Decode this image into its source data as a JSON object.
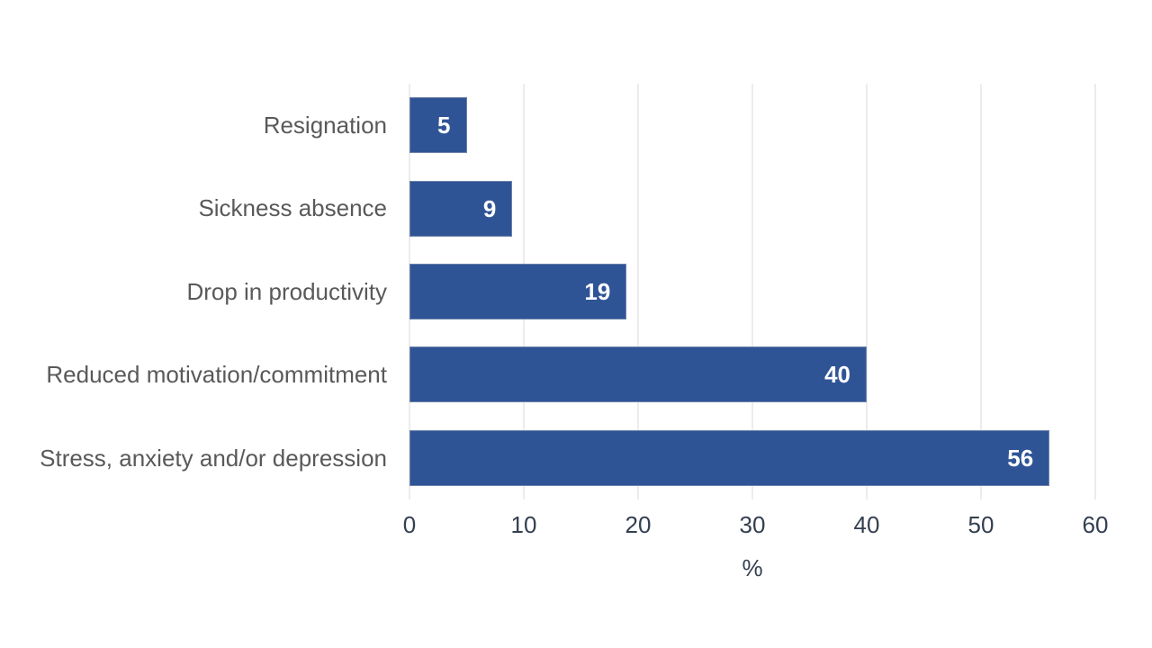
{
  "chart_data": {
    "type": "bar",
    "orientation": "horizontal",
    "title": "",
    "xlabel": "%",
    "ylabel": "",
    "categories": [
      "Resignation",
      "Sickness absence",
      "Drop in productivity",
      "Reduced motivation/commitment",
      "Stress, anxiety and/or depression"
    ],
    "values": [
      5,
      9,
      19,
      40,
      56
    ],
    "value_labels": [
      "5",
      "9",
      "19",
      "40",
      "56"
    ],
    "xlim": [
      0,
      60
    ],
    "xticks": [
      0,
      10,
      20,
      30,
      40,
      50,
      60
    ],
    "tick_labels": [
      "0",
      "10",
      "20",
      "30",
      "40",
      "50",
      "60"
    ],
    "grid": true,
    "gridlines": "vertical",
    "legend_position": "none",
    "colors": {
      "bar_fill": "#2F5496",
      "bar_border": "#9EA8BC",
      "gridline": "#D9D9D9",
      "category_label": "#595959",
      "tick_label": "#333F50",
      "axis_title": "#333F50",
      "value_label": "#FFFFFF",
      "background": "#FFFFFF"
    }
  }
}
